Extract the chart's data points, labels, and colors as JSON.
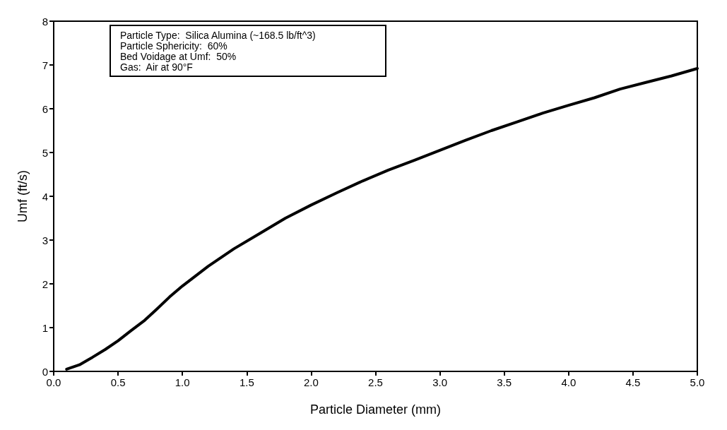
{
  "chart_data": {
    "type": "line",
    "xlabel": "Particle Diameter (mm)",
    "ylabel": "Umf (ft/s)",
    "annotations": [
      "Particle Type:  Silica Alumina (~168.5 lb/ft^3)",
      "Particle Sphericity:  60%",
      "Bed Voidage at Umf:  50%",
      "Gas:  Air at 90°F"
    ],
    "x": [
      0.1,
      0.2,
      0.3,
      0.4,
      0.5,
      0.6,
      0.7,
      0.8,
      0.9,
      1.0,
      1.2,
      1.4,
      1.6,
      1.8,
      2.0,
      2.2,
      2.4,
      2.6,
      2.8,
      3.0,
      3.2,
      3.4,
      3.6,
      3.8,
      4.0,
      4.2,
      4.4,
      4.6,
      4.8,
      5.0
    ],
    "series": [
      {
        "color": "#000000",
        "values": [
          0.05,
          0.15,
          0.32,
          0.5,
          0.7,
          0.93,
          1.15,
          1.42,
          1.7,
          1.95,
          2.4,
          2.8,
          3.15,
          3.5,
          3.8,
          4.08,
          4.35,
          4.6,
          4.82,
          5.05,
          5.28,
          5.5,
          5.7,
          5.9,
          6.08,
          6.25,
          6.45,
          6.6,
          6.75,
          6.92
        ]
      }
    ],
    "xlim": [
      0,
      5
    ],
    "ylim": [
      0,
      8
    ],
    "xticks": [
      {
        "value": 0,
        "label": "0.0"
      },
      0.5,
      {
        "value": 1,
        "label": "1.0"
      },
      1.5,
      {
        "value": 2,
        "label": "2.0"
      },
      2.5,
      {
        "value": 3,
        "label": "3.0"
      },
      3.5,
      {
        "value": 4,
        "label": "4.0"
      },
      4.5,
      {
        "value": 5,
        "label": "5.0"
      }
    ],
    "yticks": [
      0,
      1,
      2,
      3,
      4,
      5,
      6,
      7,
      8
    ],
    "grid": false,
    "marker": "none",
    "line_style": "solid"
  }
}
